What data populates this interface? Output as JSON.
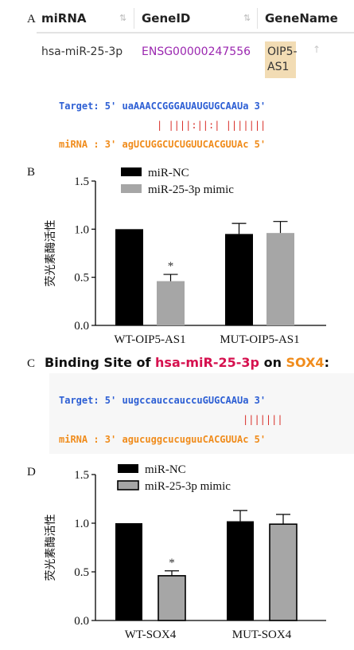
{
  "panelA": {
    "letter": "A",
    "headers": [
      "miRNA",
      "GeneID",
      "GeneName"
    ],
    "sort_icon": "sort-arrows-icon",
    "row": {
      "mirna": "hsa-miR-25-3p",
      "gene_id": "ENSG00000247556",
      "gene_name_line1": "OIP5-",
      "gene_name_line2": "AS1"
    },
    "row_icon": "arrow-up-icon",
    "colors": {
      "gene_id": "#9b27b0",
      "badge": "#f2dcb4"
    },
    "alignment": {
      "target": "Target: 5' uaAAACCGGGAUAUGUGCAAUa 3'",
      "pairs": "| ||||:||:| |||||||",
      "mirna": "miRNA : 3' agUCUGGCUCUGUUCACGUUAc 5'"
    }
  },
  "panelC": {
    "letter": "C",
    "title_prefix": "Binding Site of ",
    "title_mirna": "hsa-miR-25-3p",
    "title_mid": " on ",
    "title_gene": "SOX4",
    "title_suffix": ":",
    "colors": {
      "mirna": "#d6114f",
      "gene": "#f08c1c",
      "target_text": "#2d5fd4",
      "mirna_text": "#f08c1c"
    },
    "alignment": {
      "target": "Target: 5' uugccauccauccuGUGCAAUa 3'",
      "pairs": "|||||||",
      "mirna": "miRNA : 3' agucuggcucuguuCACGUUAc 5'"
    }
  },
  "chart_data": [
    {
      "type": "bar",
      "panel": "B",
      "categories": [
        "WT-OIP5-AS1",
        "MUT-OIP5-AS1"
      ],
      "series": [
        {
          "name": "miR-NC",
          "values": [
            1.0,
            0.95
          ],
          "errors": [
            0,
            0.11
          ],
          "color": "#000000"
        },
        {
          "name": "miR-25-3p mimic",
          "values": [
            0.46,
            0.96
          ],
          "errors": [
            0.07,
            0.12
          ],
          "color": "#a6a6a6"
        }
      ],
      "ylabel": "荧光素酶活性",
      "ylim": [
        0,
        1.5
      ],
      "yticks": [
        "0.0",
        "0.5",
        "1.0",
        "1.5"
      ],
      "annotations": [
        {
          "text": "*",
          "category": 0,
          "series": 1
        }
      ],
      "legend": "top-left",
      "grid": false
    },
    {
      "type": "bar",
      "panel": "D",
      "categories": [
        "WT-SOX4",
        "MUT-SOX4"
      ],
      "series": [
        {
          "name": "miR-NC",
          "values": [
            1.0,
            1.02
          ],
          "errors": [
            0,
            0.11
          ],
          "color": "#000000"
        },
        {
          "name": "miR-25-3p mimic",
          "values": [
            0.46,
            0.99
          ],
          "errors": [
            0.05,
            0.1
          ],
          "color": "#a6a6a6"
        }
      ],
      "ylabel": "荧光素酶活性",
      "ylim": [
        0,
        1.5
      ],
      "yticks": [
        "0.0",
        "0.5",
        "1.0",
        "1.5"
      ],
      "annotations": [
        {
          "text": "*",
          "category": 0,
          "series": 1
        }
      ],
      "legend": "top-left",
      "grid": false
    }
  ]
}
